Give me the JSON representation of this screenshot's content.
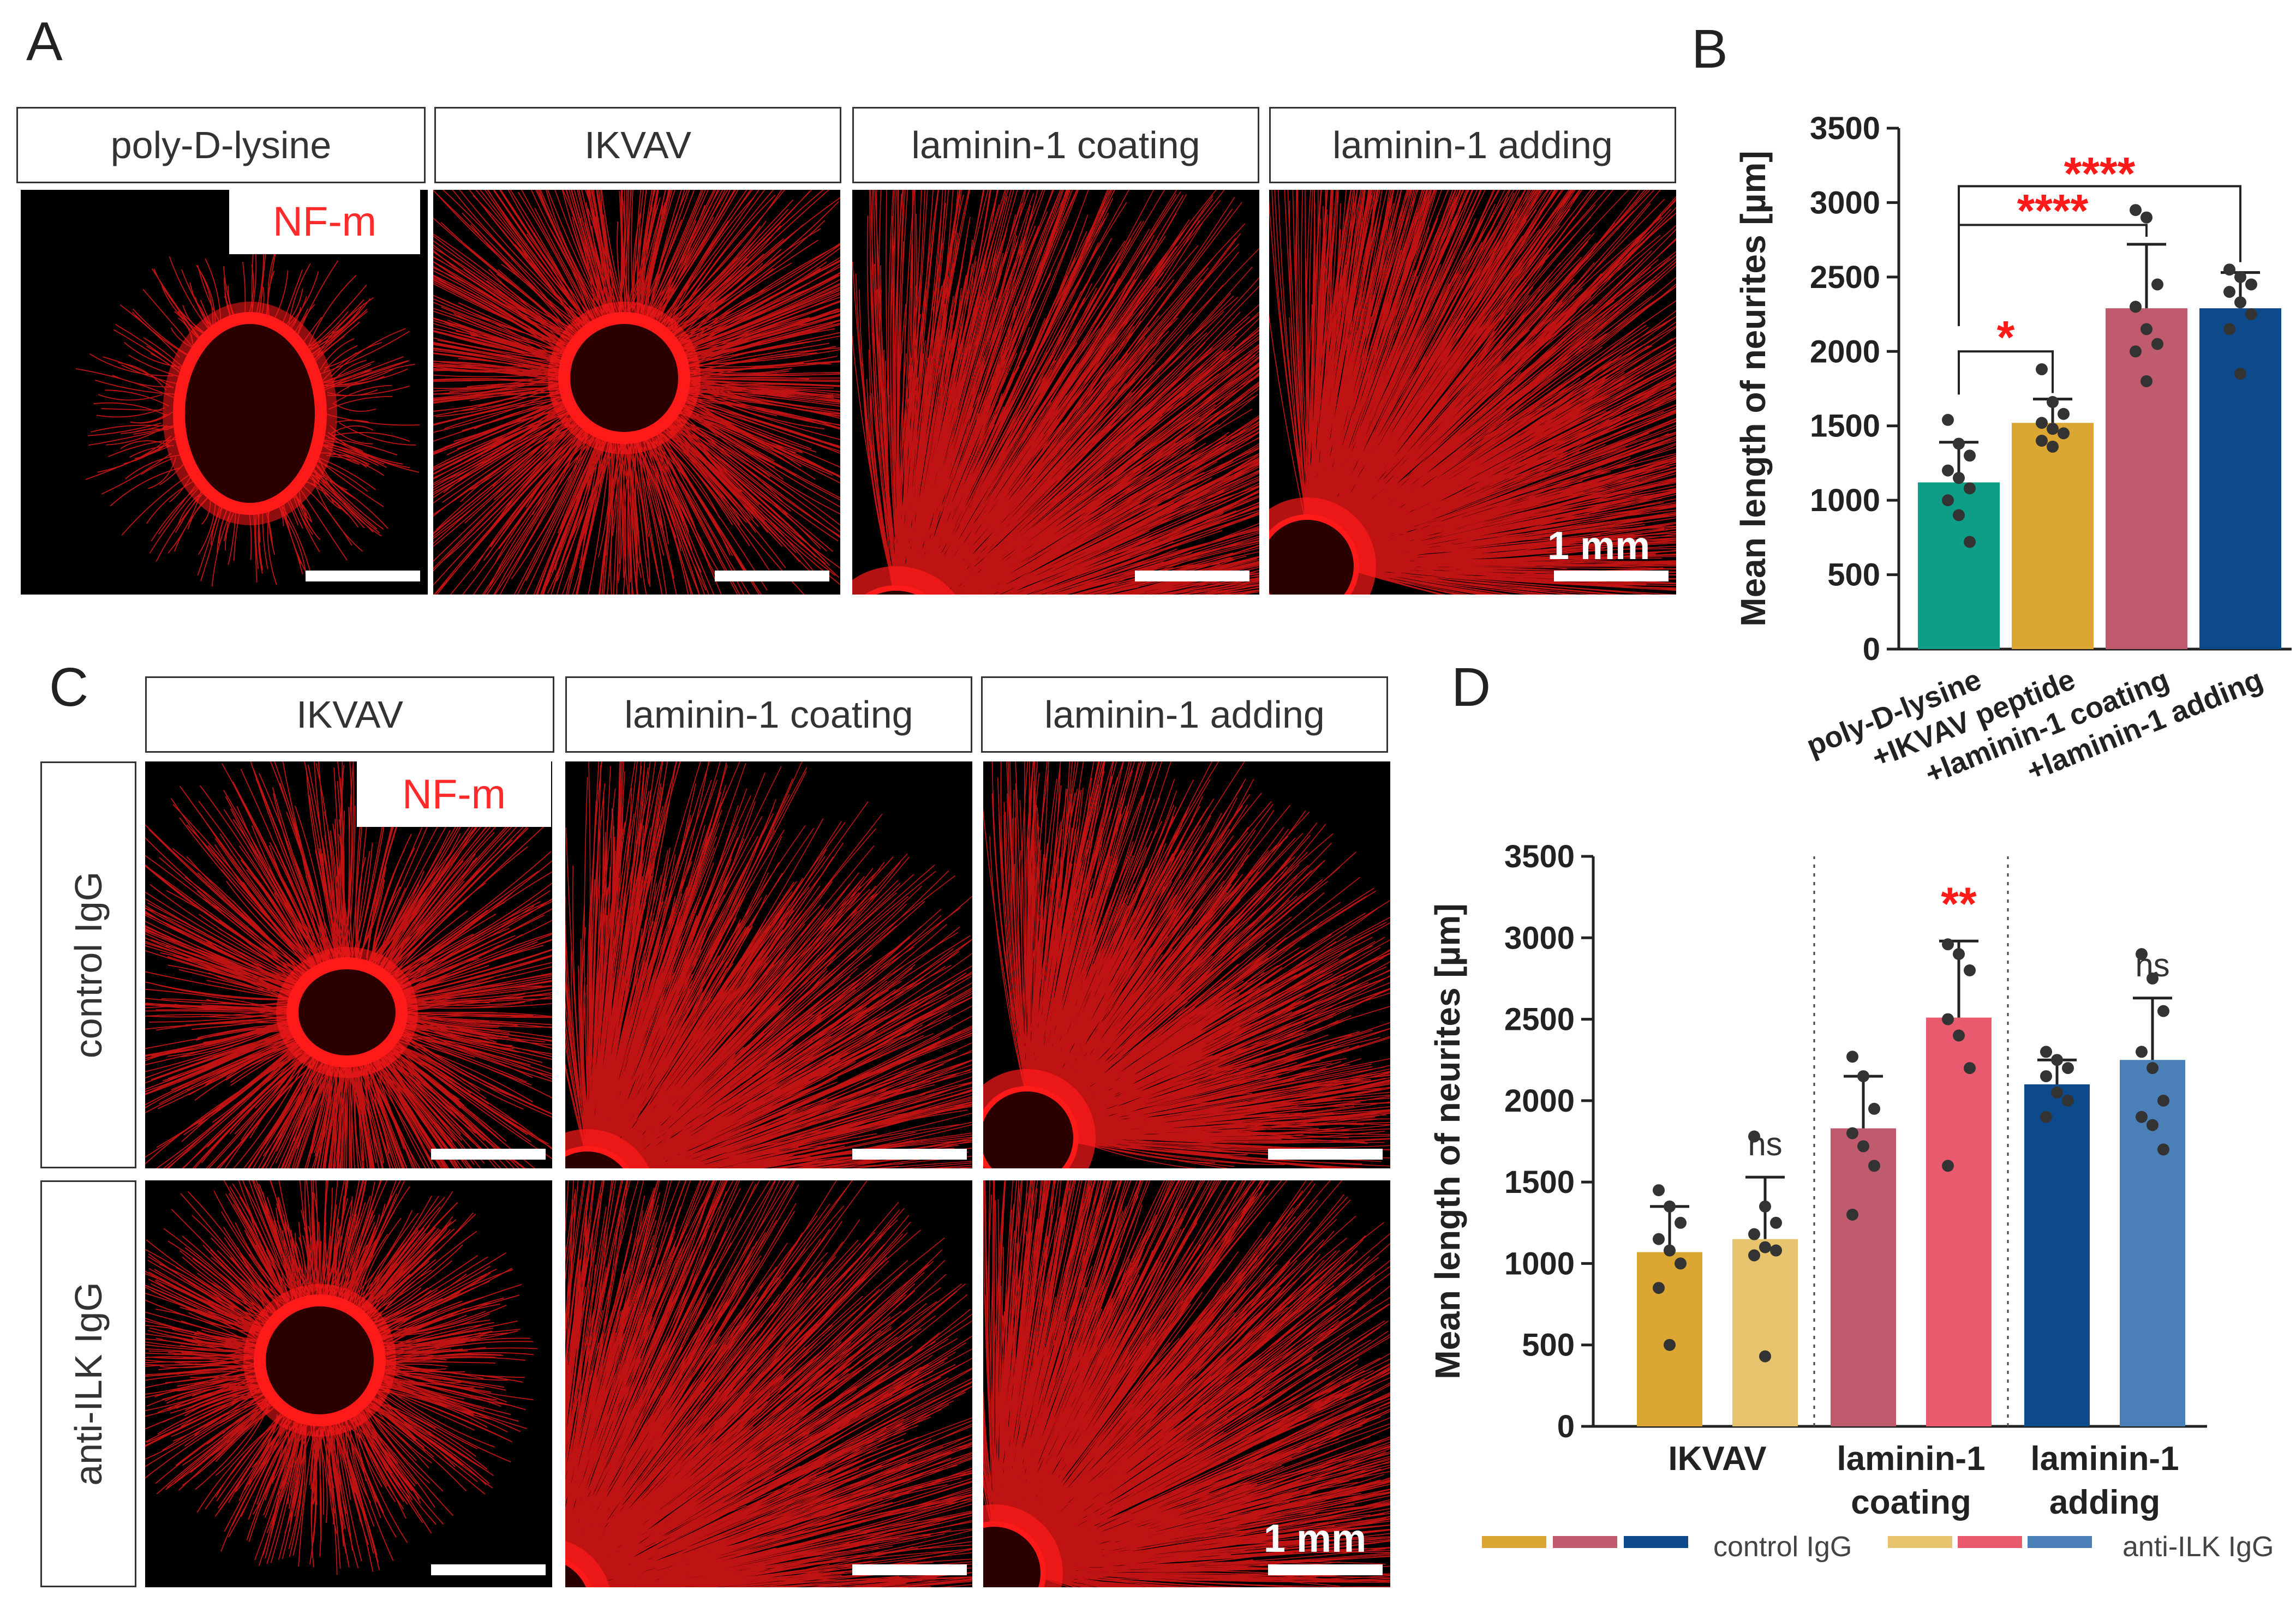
{
  "panels": {
    "a": "A",
    "b": "B",
    "c": "C",
    "d": "D"
  },
  "panel_a": {
    "headers": [
      "poly-D-lysine",
      "IKVAV",
      "laminin-1 coating",
      "laminin-1 adding"
    ],
    "stain": "NF-m",
    "scale": "1 mm"
  },
  "panel_c": {
    "headers": [
      "IKVAV",
      "laminin-1 coating",
      "laminin-1 adding"
    ],
    "rows": [
      "control IgG",
      "anti-ILK IgG"
    ],
    "stain": "NF-m",
    "scale": "1 mm"
  },
  "colors": {
    "red_stain": "#ff1a1a",
    "teal": "#0e9e88",
    "gold": "#dca632",
    "rose": "#bf5b6d",
    "navy": "#0d4a8c",
    "gold_light": "#e8c36e",
    "pink": "#ea5a6e",
    "steel_blue": "#4a7fb8",
    "sig_red": "#ff1a1a"
  },
  "chart_data": [
    {
      "type": "bar",
      "panel": "B",
      "ylabel": "Mean length of neurites [µm]",
      "ylim": [
        0,
        3500
      ],
      "yticks": [
        0,
        500,
        1000,
        1500,
        2000,
        2500,
        3000,
        3500
      ],
      "categories": [
        "poly-D-lysine",
        "+IKVAV peptide",
        "+laminin-1 coating",
        "+laminin-1 adding"
      ],
      "values": [
        1120,
        1520,
        2290,
        2290
      ],
      "errors": [
        270,
        160,
        430,
        240
      ],
      "colors": [
        "#0e9e88",
        "#dca632",
        "#bf5b6d",
        "#0d4a8c"
      ],
      "points": [
        [
          1540,
          1380,
          1300,
          1200,
          1150,
          1080,
          1000,
          900,
          720
        ],
        [
          1880,
          1660,
          1580,
          1520,
          1480,
          1450,
          1400,
          1360
        ],
        [
          2950,
          2900,
          2450,
          2300,
          2150,
          2050,
          2000,
          1800
        ],
        [
          2550,
          2500,
          2450,
          2400,
          2330,
          2250,
          2150,
          1850
        ]
      ],
      "significance": [
        {
          "from": 0,
          "to": 1,
          "label": "*"
        },
        {
          "from": 0,
          "to": 2,
          "label": "****"
        },
        {
          "from": 0,
          "to": 3,
          "label": "****"
        }
      ]
    },
    {
      "type": "bar",
      "panel": "D",
      "ylabel": "Mean length of neurites [µm]",
      "ylim": [
        0,
        3500
      ],
      "yticks": [
        0,
        500,
        1000,
        1500,
        2000,
        2500,
        3000,
        3500
      ],
      "groups": [
        "IKVAV",
        "laminin-1\ncoating",
        "laminin-1\nadding"
      ],
      "series": [
        {
          "name": "control IgG",
          "values": [
            1070,
            1830,
            2100
          ],
          "errors": [
            280,
            320,
            150
          ],
          "colors": [
            "#dca632",
            "#bf5b6d",
            "#0d4a8c"
          ]
        },
        {
          "name": "anti-ILK IgG",
          "values": [
            1150,
            2510,
            2250
          ],
          "errors": [
            380,
            470,
            380
          ],
          "colors": [
            "#e8c36e",
            "#ea5a6e",
            "#4a7fb8"
          ]
        }
      ],
      "points": [
        [
          [
            1450,
            1350,
            1250,
            1150,
            1080,
            1000,
            850,
            500
          ]
        ],
        [
          [
            1780,
            1350,
            1250,
            1180,
            1100,
            1080,
            1050,
            430
          ]
        ],
        [
          [
            2270,
            2150,
            1950,
            1800,
            1720,
            1600,
            1300
          ]
        ],
        [
          [
            2960,
            2900,
            2800,
            2500,
            2400,
            2200,
            1600
          ]
        ],
        [
          [
            2300,
            2250,
            2200,
            2150,
            2050,
            2000,
            1900
          ]
        ],
        [
          [
            2900,
            2750,
            2550,
            2300,
            2200,
            2000,
            1900,
            1850,
            1700
          ]
        ]
      ],
      "annotations": [
        "ns",
        "**",
        "ns"
      ],
      "annotation_colors": [
        "#333333",
        "#ff1a1a",
        "#333333"
      ],
      "legend": [
        "control IgG",
        "anti-ILK IgG"
      ]
    }
  ]
}
